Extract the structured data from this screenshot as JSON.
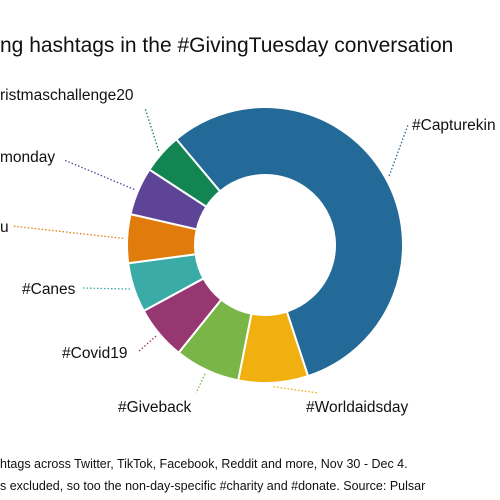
{
  "chart_data": {
    "type": "pie",
    "style": "donut",
    "title": "ng hashtags in the #GivingTuesday conversation",
    "slices": [
      {
        "label": "#Capturekin",
        "value": 55.0,
        "color": "#236a98"
      },
      {
        "label": "#Worldaidsday",
        "value": 8.0,
        "color": "#efb010"
      },
      {
        "label": "#Giveback",
        "value": 7.5,
        "color": "#7ab548"
      },
      {
        "label": "#Covid19",
        "value": 6.2,
        "color": "#973771"
      },
      {
        "label": "#Canes",
        "value": 5.7,
        "color": "#3aaba6"
      },
      {
        "label": "u",
        "value": 5.6,
        "color": "#e17c0c"
      },
      {
        "label": "monday",
        "value": 5.5,
        "color": "#5e4496"
      },
      {
        "label": "ristmaschallenge20",
        "value": 4.6,
        "color": "#128552"
      }
    ],
    "notes": [
      "htags across Twitter, TikTok, Facebook, Reddit and more, Nov 30 - Dec 4.",
      "s excluded, so too the non-day-specific #charity and #donate. Source: Pulsar"
    ]
  }
}
